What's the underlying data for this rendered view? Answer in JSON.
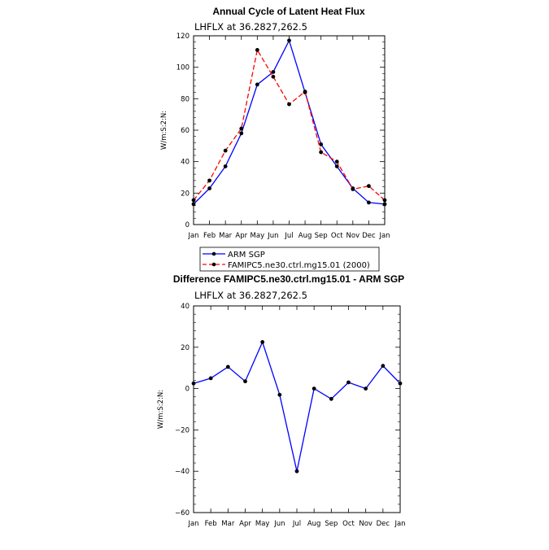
{
  "chart_data": [
    {
      "type": "line",
      "title": "Annual Cycle of Latent Heat Flux",
      "subtitle": "LHFLX at 36.2827,262.5",
      "ylabel": "W/m:S:2:N:",
      "xlabel": "",
      "categories": [
        "Jan",
        "Feb",
        "Mar",
        "Apr",
        "May",
        "Jun",
        "Jul",
        "Aug",
        "Sep",
        "Oct",
        "Nov",
        "Dec",
        "Jan"
      ],
      "ylim": [
        0,
        120
      ],
      "yticks": [
        0,
        20,
        40,
        60,
        80,
        100,
        120
      ],
      "ytick_labels": [
        "0",
        "20",
        "40",
        "60",
        "80",
        "100",
        "120"
      ],
      "series": [
        {
          "name": "ARM SGP",
          "color": "#0000ff",
          "dash": "solid",
          "values": [
            13,
            23,
            37,
            58,
            89,
            97,
            117,
            84,
            51,
            37,
            23,
            14,
            13
          ]
        },
        {
          "name": "FAMIPC5.ne30.ctrl.mg15.01 (2000)",
          "color": "#ff0000",
          "dash": "dashed",
          "values": [
            15.5,
            28,
            47,
            61,
            111,
            94,
            76.5,
            84.5,
            46,
            40,
            22.5,
            24.5,
            15.5
          ]
        }
      ],
      "legend": "bottom"
    },
    {
      "type": "line",
      "title": "Difference FAMIPC5.ne30.ctrl.mg15.01 - ARM SGP",
      "subtitle": "LHFLX at 36.2827,262.5",
      "ylabel": "W/m:S:2:N:",
      "xlabel": "",
      "categories": [
        "Jan",
        "Feb",
        "Mar",
        "Apr",
        "May",
        "Jun",
        "Jul",
        "Aug",
        "Sep",
        "Oct",
        "Nov",
        "Dec",
        "Jan"
      ],
      "ylim": [
        -60,
        40
      ],
      "yticks": [
        -60,
        -40,
        -20,
        0,
        20,
        40
      ],
      "ytick_labels": [
        "−60",
        "−40",
        "−20",
        "0",
        "20",
        "40"
      ],
      "series": [
        {
          "name": "Difference",
          "color": "#0000ff",
          "dash": "solid",
          "values": [
            2.5,
            5,
            10.5,
            3.5,
            22.5,
            -3,
            -40,
            0,
            -5,
            3,
            0,
            11,
            2.5
          ]
        }
      ]
    }
  ]
}
